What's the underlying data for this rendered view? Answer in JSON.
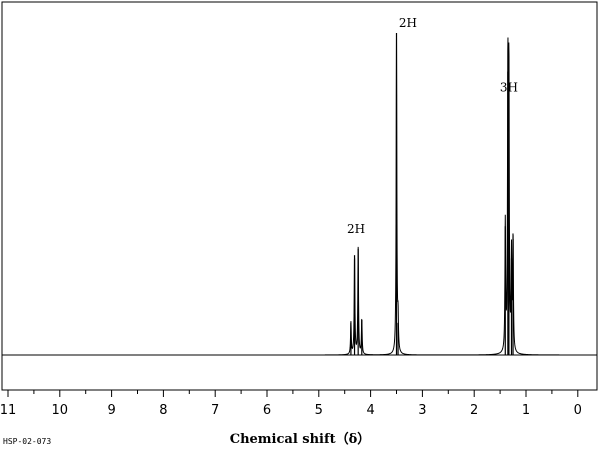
{
  "chart_data": {
    "type": "line",
    "title": "",
    "xlabel": "Chemical shift（δ）",
    "ylabel": "",
    "xlim": [
      11,
      -0.3
    ],
    "x_reversed": true,
    "xticks": [
      "11",
      "10",
      "9",
      "8",
      "7",
      "6",
      "5",
      "4",
      "3",
      "2",
      "1",
      "0"
    ],
    "ylim": [
      0,
      1.0
    ],
    "grid": false,
    "spectrum_id": "HSP-02-073",
    "peaks": [
      {
        "shift": 4.38,
        "height": 0.1
      },
      {
        "shift": 4.31,
        "height": 0.31
      },
      {
        "shift": 4.24,
        "height": 0.33
      },
      {
        "shift": 4.17,
        "height": 0.11
      },
      {
        "shift": 3.5,
        "height": 1.0
      },
      {
        "shift": 3.47,
        "height": 0.1
      },
      {
        "shift": 1.4,
        "height": 0.4
      },
      {
        "shift": 1.35,
        "height": 0.88
      },
      {
        "shift": 1.33,
        "height": 0.86
      },
      {
        "shift": 1.28,
        "height": 0.3
      },
      {
        "shift": 1.25,
        "height": 0.36
      }
    ],
    "integrations": [
      {
        "label": "2H",
        "shift": 4.28,
        "height": 0.36
      },
      {
        "label": "2H",
        "shift": 3.28,
        "height": 1.0
      },
      {
        "label": "3H",
        "shift": 1.33,
        "height": 0.8
      }
    ]
  }
}
